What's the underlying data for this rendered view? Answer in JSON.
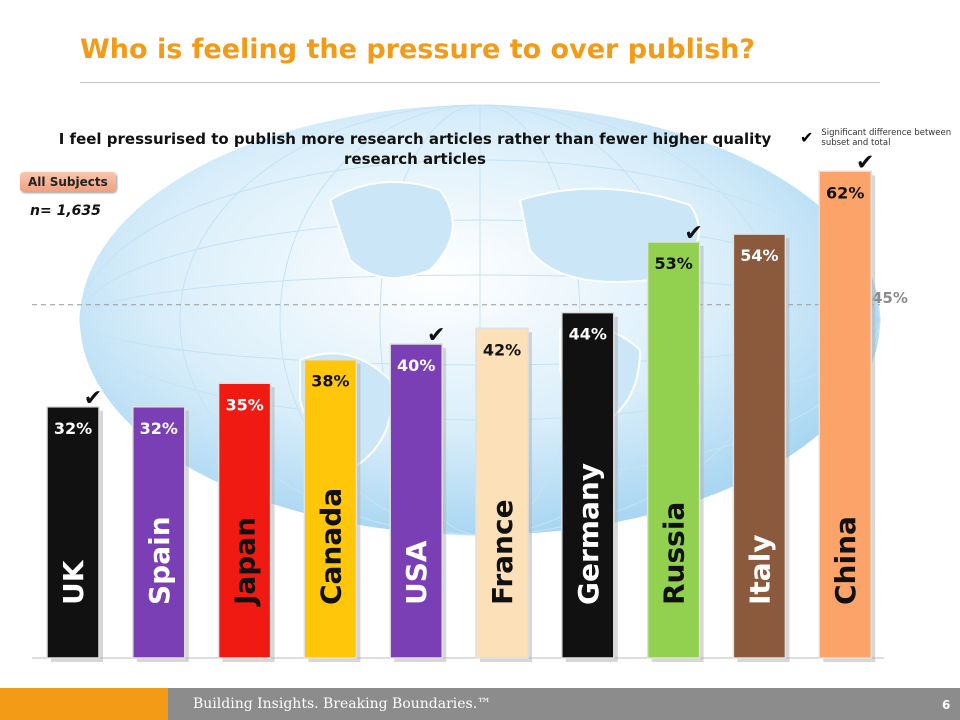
{
  "title": "Who is feeling the pressure to over publish?",
  "question": "I feel pressurised to publish more research articles rather than fewer higher quality research articles",
  "legend_note": "Significant difference between subset and total",
  "subset_badge": "All Subjects",
  "sample_size": "n= 1,635",
  "footer": {
    "tagline": "Building Insights. Breaking Boundaries.™",
    "page_number": "6"
  },
  "colors": {
    "title": "#f39a17",
    "footer_accent": "#f39a17",
    "footer_bar": "#8c8c8c",
    "reference_line": "#999999"
  },
  "chart_data": {
    "type": "bar",
    "categories": [
      "UK",
      "Spain",
      "Japan",
      "Canada",
      "USA",
      "France",
      "Germany",
      "Russia",
      "Italy",
      "China"
    ],
    "values": [
      32,
      32,
      35,
      38,
      40,
      42,
      44,
      53,
      54,
      62
    ],
    "value_labels": [
      "32%",
      "32%",
      "35%",
      "38%",
      "40%",
      "42%",
      "44%",
      "53%",
      "54%",
      "62%"
    ],
    "significant": [
      true,
      false,
      false,
      false,
      true,
      false,
      false,
      true,
      false,
      true
    ],
    "bar_colors": [
      "#111111",
      "#7b3fb5",
      "#f11a12",
      "#ffc60a",
      "#7b3fb5",
      "#fbe0b8",
      "#111111",
      "#92d050",
      "#8b5a3c",
      "#fba368"
    ],
    "label_colors": [
      "#ffffff",
      "#ffffff",
      "#111111",
      "#111111",
      "#ffffff",
      "#111111",
      "#ffffff",
      "#111111",
      "#ffffff",
      "#111111"
    ],
    "value_label_colors": [
      "#ffffff",
      "#ffffff",
      "#ffffff",
      "#111111",
      "#ffffff",
      "#111111",
      "#ffffff",
      "#111111",
      "#ffffff",
      "#111111"
    ],
    "reference_value": 45,
    "reference_label": "45%",
    "ylim": [
      0,
      100
    ],
    "grid": false
  }
}
